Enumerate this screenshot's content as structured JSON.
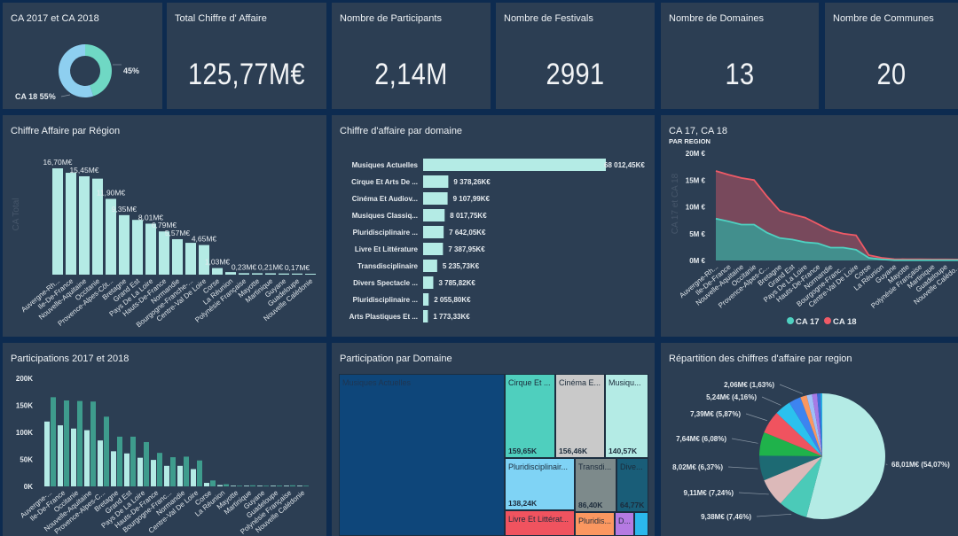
{
  "kpis": {
    "donut_title": "CA 2017 et CA 2018",
    "donut": {
      "slices": [
        {
          "label": "CA 17",
          "pct": 45,
          "color": "#6fd8c4"
        },
        {
          "label": "CA 18",
          "pct": 55,
          "color": "#8ecff0"
        }
      ],
      "label_ca17": "45%",
      "label_ca18": "CA 18 55%"
    },
    "total_title": "Total Chiffre d' Affaire",
    "total_value": "125,77M€",
    "participants_title": "Nombre de Participants",
    "participants_value": "2,14M",
    "festivals_title": "Nombre de Festivals",
    "festivals_value": "2991",
    "domaines_title": "Nombre de Domaines",
    "domaines_value": "13",
    "communes_title": "Nombre de Communes",
    "communes_value": "20"
  },
  "colors": {
    "background": "#0d2b50",
    "panel": "#2c3e53",
    "bar_light": "#b4ebe5",
    "bar_teal": "#3e9c8d",
    "ca17": "#4fd1c1",
    "ca18": "#ef5a66"
  },
  "chart_data": [
    {
      "id": "ca_region",
      "type": "bar",
      "title": "Chiffre Affaire par Région",
      "ylabel": "CA Total",
      "unit": "M€",
      "categories": [
        "Auvergne-Rh...",
        "Ile-De-France",
        "Nouvelle-Aquitaine",
        "Occitanie",
        "Provence-Alpes-Côt...",
        "Bretagne",
        "Grand Est",
        "Pays De La Loire",
        "Hauts-De-France",
        "Normandie",
        "Bourgogne-Franche-...",
        "Centre-Val De Loire",
        "Corse",
        "La Réunion",
        "Polynésie Française",
        "Mayotte",
        "Martinique",
        "Guyane",
        "Guadeloupe",
        "Nouvelle Calédonie"
      ],
      "values": [
        16.7,
        16.0,
        15.45,
        15.08,
        11.9,
        9.35,
        8.6,
        8.01,
        6.79,
        5.57,
        5.0,
        4.65,
        1.03,
        0.4,
        0.23,
        0.22,
        0.21,
        0.18,
        0.17,
        0.1
      ],
      "data_labels": [
        "16,70M€",
        "",
        "15,45M€",
        "",
        "11,90M€",
        "9,35M€",
        "",
        "8,01M€",
        "6,79M€",
        "5,57M€",
        "",
        "4,65M€",
        "1,03M€",
        "",
        "0,23M€",
        "",
        "0,21M€",
        "",
        "0,17M€",
        ""
      ],
      "ylim": [
        0,
        20
      ]
    },
    {
      "id": "ca_domaine",
      "type": "bar",
      "orientation": "horizontal",
      "title": "Chiffre d'affaire par domaine",
      "unit": "K€",
      "categories": [
        "Musiques Actuelles",
        "Cirque Et Arts De ...",
        "Cinéma Et Audiov...",
        "Musiques Classiq...",
        "Pluridisciplinaire ...",
        "Livre Et Littérature",
        "Transdisciplinaire",
        "Divers Spectacle ...",
        "Pluridisciplinaire ...",
        "Arts Plastiques Et ..."
      ],
      "values": [
        68012.45,
        9378.26,
        9107.99,
        8017.75,
        7642.05,
        7387.95,
        5235.73,
        3785.82,
        2055.8,
        1773.33
      ],
      "data_labels": [
        "68 012,45K€",
        "9 378,26K€",
        "9 107,99K€",
        "8 017,75K€",
        "7 642,05K€",
        "7 387,95K€",
        "5 235,73K€",
        "3 785,82K€",
        "2 055,80K€",
        "1 773,33K€"
      ]
    },
    {
      "id": "ca17_ca18",
      "type": "area",
      "title": "CA 17, CA 18",
      "subtitle": "PAR REGION",
      "ylabel": "CA 17 et CA 18",
      "yticks": [
        "0M €",
        "5M €",
        "10M €",
        "15M €",
        "20M €"
      ],
      "ylim": [
        0,
        20
      ],
      "categories": [
        "Auvergne-Rh...",
        "Ile-De-France",
        "Nouvelle-Aquitaine",
        "Occitanie",
        "Provence-Alpes-C...",
        "Bretagne",
        "Grand Est",
        "Pays De La Loire",
        "Hauts-De-France",
        "Normandie",
        "Bourgogne-Franc...",
        "Centre-Val De Loire",
        "Corse",
        "La Réunion",
        "Guyane",
        "Mayotte",
        "Polynésie Française",
        "Martinique",
        "Guadeloupe",
        "Nouvelle Calédo..."
      ],
      "series": [
        {
          "name": "CA 17",
          "color": "#4fd1c1",
          "values": [
            7.8,
            7.3,
            6.7,
            6.7,
            5.2,
            4.2,
            3.9,
            3.4,
            3.2,
            2.4,
            2.4,
            2.0,
            0.5,
            0.2,
            0.05,
            0.05,
            0.05,
            0.05,
            0.05,
            0.05
          ]
        },
        {
          "name": "CA 18",
          "color": "#ef5a66",
          "values": [
            16.7,
            16.0,
            15.4,
            15.0,
            12.0,
            9.3,
            8.6,
            8.0,
            6.8,
            5.6,
            5.0,
            4.7,
            1.0,
            0.5,
            0.25,
            0.22,
            0.22,
            0.2,
            0.2,
            0.18
          ]
        }
      ],
      "legend": "bottom"
    },
    {
      "id": "participations",
      "type": "bar",
      "title": "Participations 2017 et 2018",
      "yticks": [
        "0K",
        "50K",
        "100K",
        "150K",
        "200K"
      ],
      "ylim": [
        0,
        200
      ],
      "unit": "K",
      "categories": [
        "Auvergne-...",
        "Ile-De-France",
        "Occitanie",
        "Nouvelle-Aquitaine",
        "Provence-Alpes-C...",
        "Bretagne",
        "Grand Est",
        "Pays De La Loire",
        "Hauts-De-France",
        "Bourgogne-Franc...",
        "Normandie",
        "Centre-Val De Loire",
        "Corse",
        "La Réunion",
        "Mayotte",
        "Martinique",
        "Guyane",
        "Guadeloupe",
        "Polynésie Française",
        "Nouvelle Calédonie"
      ],
      "series": [
        {
          "color": "#b4ebe5",
          "values": [
            120,
            113,
            107,
            104,
            85,
            65,
            61,
            53,
            49,
            38,
            38,
            32,
            6.5,
            2.5,
            1,
            1,
            1,
            1,
            1,
            0.5
          ]
        },
        {
          "color": "#3e9c8d",
          "values": [
            165,
            159,
            158,
            157,
            129,
            92,
            92,
            82,
            62,
            54,
            55,
            48,
            11,
            4,
            1,
            2,
            1,
            1.5,
            2,
            1
          ]
        }
      ]
    },
    {
      "id": "participation_domaine",
      "type": "treemap",
      "title": "Participation par Domaine",
      "items": [
        {
          "label": "Musiques Actuelles",
          "value": "",
          "color": "#0e467a"
        },
        {
          "label": "Cirque Et ...",
          "value": "159,65K",
          "color": "#4fcfbe"
        },
        {
          "label": "Cinéma E...",
          "value": "156,46K",
          "color": "#c9c9c9"
        },
        {
          "label": "Musiqu...",
          "value": "140,57K",
          "color": "#b4ebe5"
        },
        {
          "label": "Pluridisciplinair...",
          "value": "138,24K",
          "color": "#7fd3f5"
        },
        {
          "label": "Transdi...",
          "value": "86,40K",
          "color": "#7d8a8b"
        },
        {
          "label": "Dive...",
          "value": "64,77K",
          "color": "#195d78"
        },
        {
          "label": "Livre Et Littérat...",
          "value": "",
          "color": "#f0535f"
        },
        {
          "label": "Pluridis...",
          "value": "",
          "color": "#fb9760"
        },
        {
          "label": "D...",
          "value": "",
          "color": "#b57ae2"
        },
        {
          "label": "",
          "value": "",
          "color": "#2bb8ec"
        }
      ]
    },
    {
      "id": "repartition_region",
      "type": "pie",
      "title": "Répartition des chiffres d'affaire par region",
      "slices": [
        {
          "pct": 54.07,
          "label": "68,01M€ (54,07%)",
          "color": "#b4ebe5"
        },
        {
          "pct": 7.46,
          "label": "9,38M€ (7,46%)",
          "color": "#4bcab8"
        },
        {
          "pct": 7.24,
          "label": "9,11M€ (7,24%)",
          "color": "#dcb9b9"
        },
        {
          "pct": 6.37,
          "label": "8,02M€ (6,37%)",
          "color": "#1d6a73"
        },
        {
          "pct": 6.08,
          "label": "7,64M€ (6,08%)",
          "color": "#1fb24b"
        },
        {
          "pct": 5.87,
          "label": "7,39M€ (5,87%)",
          "color": "#f0535f"
        },
        {
          "pct": 4.16,
          "label": "5,24M€ (4,16%)",
          "color": "#2bc1ee"
        },
        {
          "pct": 3.1,
          "label": "",
          "color": "#3d84f0"
        },
        {
          "pct": 1.63,
          "label": "2,06M€ (1,63%)",
          "color": "#fb9760"
        },
        {
          "pct": 1.4,
          "label": "",
          "color": "#9fbff7"
        },
        {
          "pct": 1.3,
          "label": "",
          "color": "#a77ae6"
        },
        {
          "pct": 0.9,
          "label": "",
          "color": "#3a6fd8"
        },
        {
          "pct": 0.42,
          "label": "",
          "color": "#27b5e6"
        }
      ]
    }
  ]
}
